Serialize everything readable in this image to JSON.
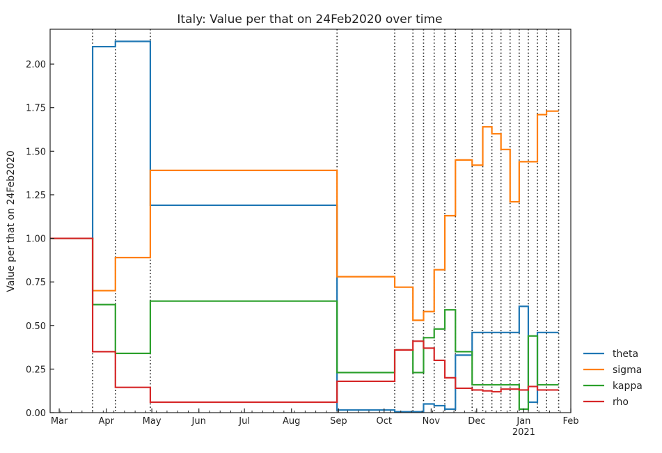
{
  "chart_data": {
    "type": "line",
    "title": "Italy: Value per that on 24Feb2020 over time",
    "xlabel": "",
    "ylabel": "Value per that on 24Feb2020",
    "x_range": [
      "2020-02-24",
      "2021-02-01"
    ],
    "ylim": [
      0,
      2.2
    ],
    "y_ticks": [
      "0.00",
      "0.25",
      "0.50",
      "0.75",
      "1.00",
      "1.25",
      "1.50",
      "1.75",
      "2.00"
    ],
    "x_ticks": [
      {
        "label": "Mar",
        "date": "2020-03-01",
        "sublabel": ""
      },
      {
        "label": "Apr",
        "date": "2020-04-01",
        "sublabel": ""
      },
      {
        "label": "May",
        "date": "2020-05-01",
        "sublabel": ""
      },
      {
        "label": "Jun",
        "date": "2020-06-01",
        "sublabel": ""
      },
      {
        "label": "Jul",
        "date": "2020-07-01",
        "sublabel": ""
      },
      {
        "label": "Aug",
        "date": "2020-08-01",
        "sublabel": ""
      },
      {
        "label": "Sep",
        "date": "2020-09-01",
        "sublabel": ""
      },
      {
        "label": "Oct",
        "date": "2020-10-01",
        "sublabel": ""
      },
      {
        "label": "Nov",
        "date": "2020-11-01",
        "sublabel": ""
      },
      {
        "label": "Dec",
        "date": "2020-12-01",
        "sublabel": ""
      },
      {
        "label": "Jan",
        "date": "2021-01-01",
        "sublabel": "2021"
      },
      {
        "label": "Feb",
        "date": "2021-02-01",
        "sublabel": ""
      }
    ],
    "change_dates": [
      "2020-03-23",
      "2020-04-07",
      "2020-04-30",
      "2020-08-31",
      "2020-10-08",
      "2020-10-20",
      "2020-10-27",
      "2020-11-03",
      "2020-11-10",
      "2020-11-17",
      "2020-11-28",
      "2020-12-05",
      "2020-12-11",
      "2020-12-17",
      "2020-12-23",
      "2020-12-29",
      "2021-01-04",
      "2021-01-10",
      "2021-01-16",
      "2021-01-24"
    ],
    "grid": false,
    "legend_position": "right",
    "series": [
      {
        "name": "theta",
        "color": "#1f77b4",
        "values": [
          1.0,
          2.1,
          2.13,
          1.19,
          0.015,
          0.005,
          0.005,
          0.05,
          0.04,
          0.02,
          0.33,
          0.46,
          0.46,
          0.46,
          0.46,
          0.46,
          0.61,
          0.06,
          0.46,
          0.46
        ]
      },
      {
        "name": "sigma",
        "color": "#ff7f0e",
        "values": [
          1.0,
          0.7,
          0.89,
          1.39,
          0.78,
          0.72,
          0.53,
          0.58,
          0.82,
          1.13,
          1.45,
          1.42,
          1.64,
          1.6,
          1.51,
          1.21,
          1.44,
          1.44,
          1.71,
          1.73
        ]
      },
      {
        "name": "kappa",
        "color": "#2ca02c",
        "values": [
          1.0,
          0.62,
          0.34,
          0.64,
          0.23,
          0.36,
          0.23,
          0.43,
          0.48,
          0.59,
          0.35,
          0.16,
          0.16,
          0.16,
          0.16,
          0.16,
          0.02,
          0.44,
          0.16,
          0.16
        ]
      },
      {
        "name": "rho",
        "color": "#d62728",
        "values": [
          1.0,
          0.35,
          0.145,
          0.06,
          0.18,
          0.36,
          0.41,
          0.37,
          0.3,
          0.2,
          0.14,
          0.13,
          0.125,
          0.12,
          0.135,
          0.135,
          0.13,
          0.15,
          0.13,
          0.13
        ]
      }
    ]
  }
}
